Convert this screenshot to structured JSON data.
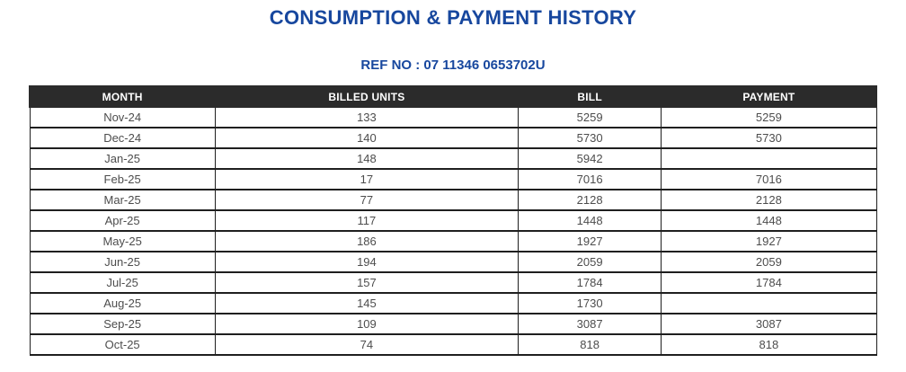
{
  "page": {
    "title": "CONSUMPTION & PAYMENT HISTORY",
    "ref_no": "REF NO : 07 11346 0653702U"
  },
  "colors": {
    "heading_blue": "#17479E",
    "table_header_bg": "#2b2b2b",
    "table_header_text": "#ffffff",
    "body_text": "#4d4d4d",
    "table_border": "#1f1f1f"
  },
  "table": {
    "columns": [
      "MONTH",
      "BILLED UNITS",
      "BILL",
      "PAYMENT"
    ],
    "rows": [
      {
        "month": "Nov-24",
        "billed_units": "133",
        "bill": "5259",
        "payment": "5259"
      },
      {
        "month": "Dec-24",
        "billed_units": "140",
        "bill": "5730",
        "payment": "5730"
      },
      {
        "month": "Jan-25",
        "billed_units": "148",
        "bill": "5942",
        "payment": ""
      },
      {
        "month": "Feb-25",
        "billed_units": "17",
        "bill": "7016",
        "payment": "7016"
      },
      {
        "month": "Mar-25",
        "billed_units": "77",
        "bill": "2128",
        "payment": "2128"
      },
      {
        "month": "Apr-25",
        "billed_units": "117",
        "bill": "1448",
        "payment": "1448"
      },
      {
        "month": "May-25",
        "billed_units": "186",
        "bill": "1927",
        "payment": "1927"
      },
      {
        "month": "Jun-25",
        "billed_units": "194",
        "bill": "2059",
        "payment": "2059"
      },
      {
        "month": "Jul-25",
        "billed_units": "157",
        "bill": "1784",
        "payment": "1784"
      },
      {
        "month": "Aug-25",
        "billed_units": "145",
        "bill": "1730",
        "payment": ""
      },
      {
        "month": "Sep-25",
        "billed_units": "109",
        "bill": "3087",
        "payment": "3087"
      },
      {
        "month": "Oct-25",
        "billed_units": "74",
        "bill": "818",
        "payment": "818"
      }
    ]
  }
}
